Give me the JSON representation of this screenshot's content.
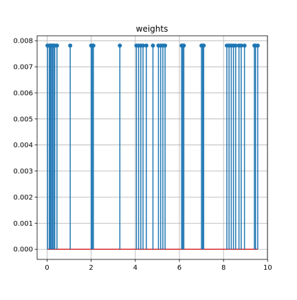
{
  "chart_data": {
    "type": "stem",
    "title": "weights",
    "xlabel": "",
    "ylabel": "",
    "xlim": [
      -0.45,
      9.99
    ],
    "ylim": [
      -0.00039,
      0.00819
    ],
    "x_ticks": [
      0,
      2,
      4,
      6,
      8,
      10
    ],
    "x_tick_labels": [
      "0",
      "2",
      "4",
      "6",
      "8",
      "10"
    ],
    "y_ticks": [
      0.0,
      0.001,
      0.002,
      0.003,
      0.004,
      0.005,
      0.006,
      0.007,
      0.008
    ],
    "y_tick_labels": [
      "0.000",
      "0.001",
      "0.002",
      "0.003",
      "0.004",
      "0.005",
      "0.006",
      "0.007",
      "0.008"
    ],
    "grid": true,
    "stem_value": 0.0078125,
    "x": [
      0.02,
      0.1,
      0.15,
      0.2,
      0.25,
      0.3,
      0.35,
      0.45,
      1.05,
      2.0,
      2.05,
      2.1,
      3.3,
      4.05,
      4.15,
      4.25,
      4.35,
      4.5,
      4.8,
      5.05,
      5.15,
      5.25,
      5.35,
      6.1,
      6.15,
      6.2,
      7.0,
      7.05,
      7.1,
      8.15,
      8.25,
      8.35,
      8.45,
      8.55,
      8.7,
      8.8,
      8.95,
      9.4,
      9.45,
      9.55
    ],
    "y": [
      0.0078125,
      0.0078125,
      0.0078125,
      0.0078125,
      0.0078125,
      0.0078125,
      0.0078125,
      0.0078125,
      0.0078125,
      0.0078125,
      0.0078125,
      0.0078125,
      0.0078125,
      0.0078125,
      0.0078125,
      0.0078125,
      0.0078125,
      0.0078125,
      0.0078125,
      0.0078125,
      0.0078125,
      0.0078125,
      0.0078125,
      0.0078125,
      0.0078125,
      0.0078125,
      0.0078125,
      0.0078125,
      0.0078125,
      0.0078125,
      0.0078125,
      0.0078125,
      0.0078125,
      0.0078125,
      0.0078125,
      0.0078125,
      0.0078125,
      0.0078125,
      0.0078125,
      0.0078125
    ],
    "baseline": 0.0,
    "colors": {
      "stem": "#1f77b4",
      "baseline": "#d62728",
      "grid": "#b0b0b0",
      "axes": "#000000"
    }
  }
}
